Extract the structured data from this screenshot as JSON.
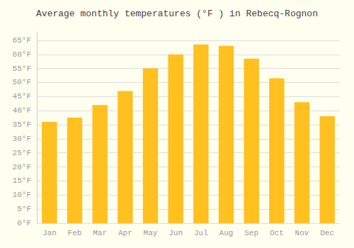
{
  "chart_data": {
    "type": "bar",
    "title": "Average monthly temperatures (°F ) in Rebecq-Rognon",
    "categories": [
      "Jan",
      "Feb",
      "Mar",
      "Apr",
      "May",
      "Jun",
      "Jul",
      "Aug",
      "Sep",
      "Oct",
      "Nov",
      "Dec"
    ],
    "values": [
      36,
      37.5,
      42,
      47,
      55,
      60,
      63.5,
      63,
      58.5,
      51.5,
      43,
      38
    ],
    "color": "#FFC020",
    "ylim": [
      0,
      68
    ],
    "yticks": [
      {
        "value": 0,
        "label": "0°F"
      },
      {
        "value": 5,
        "label": "5°F"
      },
      {
        "value": 10,
        "label": "10°F"
      },
      {
        "value": 15,
        "label": "15°F"
      },
      {
        "value": 20,
        "label": "20°F"
      },
      {
        "value": 25,
        "label": "25°F"
      },
      {
        "value": 30,
        "label": "30°F"
      },
      {
        "value": 35,
        "label": "35°F"
      },
      {
        "value": 40,
        "label": "40°F"
      },
      {
        "value": 45,
        "label": "45°F"
      },
      {
        "value": 50,
        "label": "50°F"
      },
      {
        "value": 55,
        "label": "55°F"
      },
      {
        "value": 60,
        "label": "60°F"
      },
      {
        "value": 65,
        "label": "65°F"
      }
    ],
    "grid": true
  }
}
